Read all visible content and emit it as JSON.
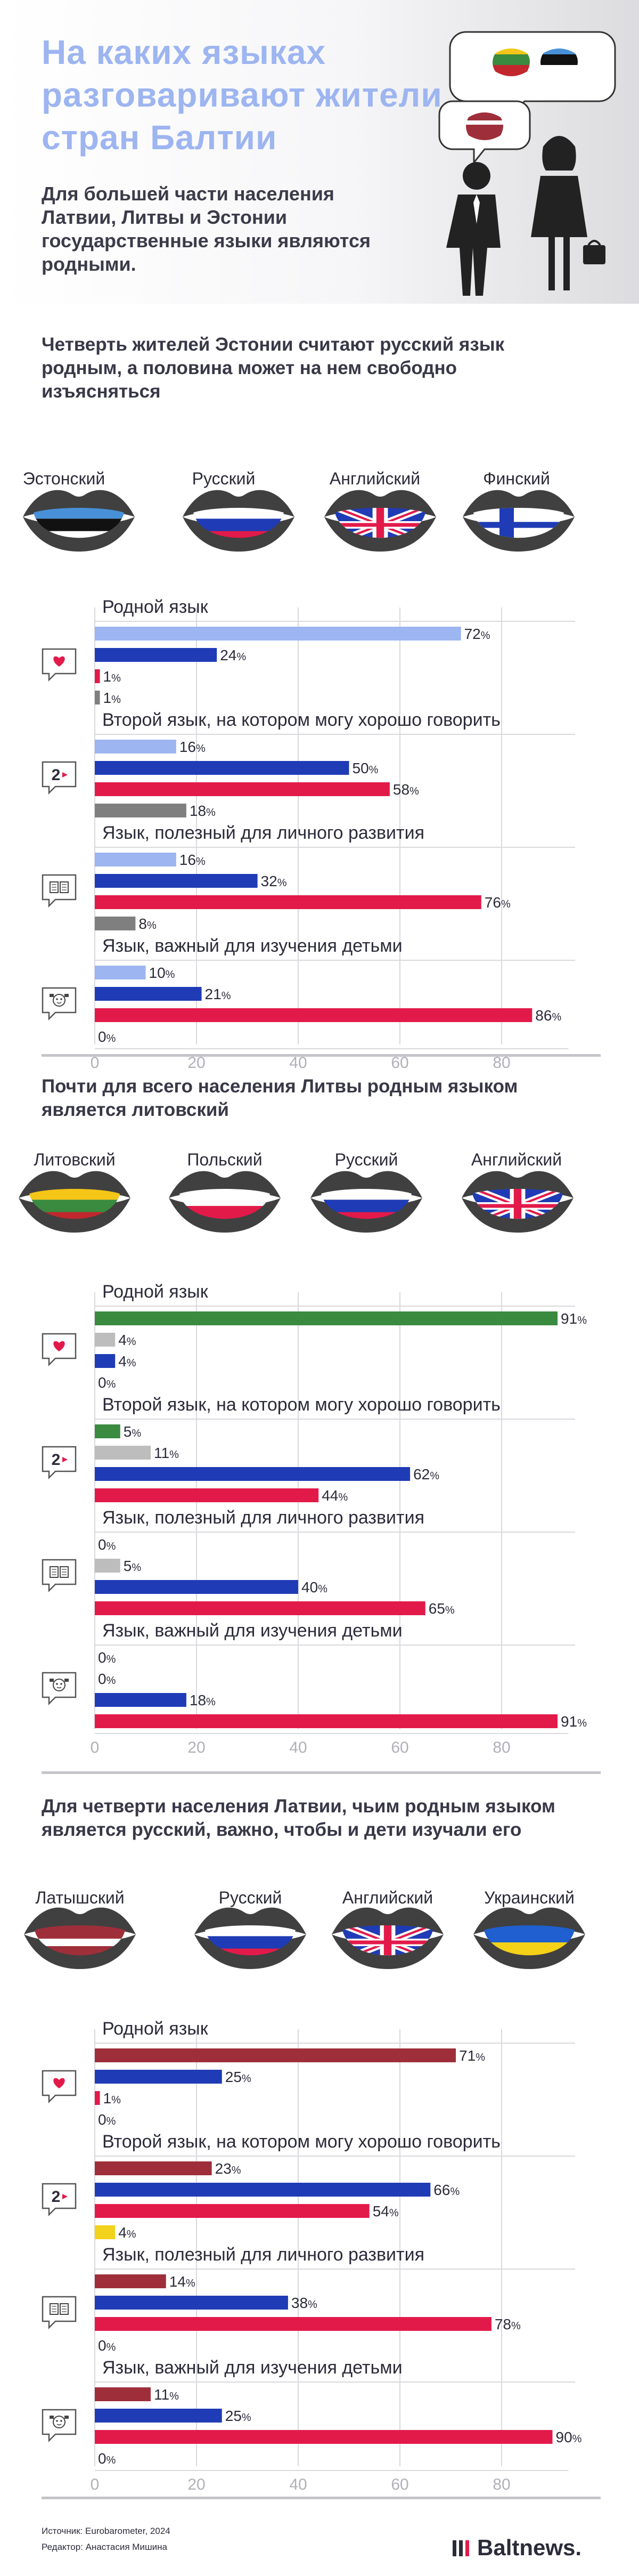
{
  "header": {
    "title": "На каких языках разговаривают жители стран Балтии",
    "lead": "Для большей части населения Латвии, Литвы и Эстонии государственные языки являются родными."
  },
  "colors": {
    "primary_blue": "#1f3bb5",
    "red": "#e21a4a",
    "light_blue": "#9db5f0",
    "green": "#3a8a3f",
    "gray": "#7f7f7f",
    "light_gray": "#bdbdbd",
    "maroon": "#9e2f3a",
    "yellow": "#f2d21b"
  },
  "sections": [
    {
      "title": "Четверть жителей Эстонии считают русский язык родным, а половина может на нем свободно изъясняться",
      "languages": [
        {
          "name": "Эстонский",
          "flag": "estonia-flag",
          "color": "#9db5f0"
        },
        {
          "name": "Русский",
          "flag": "russia-flag",
          "color": "#1f3bb5"
        },
        {
          "name": "Английский",
          "flag": "uk-flag",
          "color": "#e21a4a"
        },
        {
          "name": "Финский",
          "flag": "finland-flag",
          "color": "#7f7f7f"
        }
      ]
    },
    {
      "title": "Почти для всего населения Литвы родным языком является литовский",
      "languages": [
        {
          "name": "Литовский",
          "flag": "lithuania-flag",
          "color": "#3a8a3f"
        },
        {
          "name": "Польский",
          "flag": "poland-flag",
          "color": "#bdbdbd"
        },
        {
          "name": "Русский",
          "flag": "russia-flag",
          "color": "#1f3bb5"
        },
        {
          "name": "Английский",
          "flag": "uk-flag",
          "color": "#e21a4a"
        }
      ]
    },
    {
      "title": "Для четверти населения Латвии, чьим родным языком является русский, важно, чтобы и дети изучали его",
      "languages": [
        {
          "name": "Латышский",
          "flag": "latvia-flag",
          "color": "#9e2f3a"
        },
        {
          "name": "Русский",
          "flag": "russia-flag",
          "color": "#1f3bb5"
        },
        {
          "name": "Английский",
          "flag": "uk-flag",
          "color": "#e21a4a"
        },
        {
          "name": "Украинский",
          "flag": "ukraine-flag",
          "color": "#f2d21b"
        }
      ]
    }
  ],
  "chart_data": [
    {
      "type": "bar",
      "orientation": "horizontal",
      "title": "Четверть жителей Эстонии считают русский язык родным, а половина может на нем свободно изъясняться",
      "categories": [
        "Родной язык",
        "Второй язык, на котором могу хорошо говорить",
        "Язык, полезный для личного развития",
        "Язык, важный для изучения детьми"
      ],
      "category_icons": [
        "heart-icon",
        "number-two-icon",
        "book-icon",
        "child-icon"
      ],
      "series": [
        {
          "name": "Эстонский",
          "color": "#9db5f0",
          "values": [
            72,
            16,
            16,
            10
          ]
        },
        {
          "name": "Русский",
          "color": "#1f3bb5",
          "values": [
            24,
            50,
            32,
            21
          ]
        },
        {
          "name": "Английский",
          "color": "#e21a4a",
          "values": [
            1,
            58,
            76,
            86
          ]
        },
        {
          "name": "Финский",
          "color": "#7f7f7f",
          "values": [
            1,
            18,
            8,
            0
          ]
        }
      ],
      "unit": "%",
      "xlim": [
        0,
        90
      ],
      "xticks": [
        0,
        20,
        40,
        60,
        80
      ],
      "grid": true
    },
    {
      "type": "bar",
      "orientation": "horizontal",
      "title": "Почти для всего населения Литвы родным языком является литовский",
      "categories": [
        "Родной язык",
        "Второй язык, на котором могу хорошо говорить",
        "Язык, полезный для личного развития",
        "Язык, важный для изучения детьми"
      ],
      "category_icons": [
        "heart-icon",
        "number-two-icon",
        "book-icon",
        "child-icon"
      ],
      "series": [
        {
          "name": "Литовский",
          "color": "#3a8a3f",
          "values": [
            91,
            5,
            0,
            0
          ]
        },
        {
          "name": "Польский",
          "color": "#bdbdbd",
          "values": [
            4,
            11,
            5,
            0
          ]
        },
        {
          "name": "Русский",
          "color": "#1f3bb5",
          "values": [
            4,
            62,
            40,
            18
          ]
        },
        {
          "name": "Английский",
          "color": "#e21a4a",
          "values": [
            0,
            44,
            65,
            91
          ]
        }
      ],
      "unit": "%",
      "xlim": [
        0,
        90
      ],
      "xticks": [
        0,
        20,
        40,
        60,
        80
      ],
      "grid": true
    },
    {
      "type": "bar",
      "orientation": "horizontal",
      "title": "Для четверти населения Латвии, чьим родным языком является русский, важно, чтобы и дети изучали его",
      "categories": [
        "Родной язык",
        "Второй язык, на котором могу хорошо говорить",
        "Язык, полезный для личного развития",
        "Язык, важный для изучения детьми"
      ],
      "category_icons": [
        "heart-icon",
        "number-two-icon",
        "book-icon",
        "child-icon"
      ],
      "series": [
        {
          "name": "Латышский",
          "color": "#9e2f3a",
          "values": [
            71,
            23,
            14,
            11
          ]
        },
        {
          "name": "Русский",
          "color": "#1f3bb5",
          "values": [
            25,
            66,
            38,
            25
          ]
        },
        {
          "name": "Английский",
          "color": "#e21a4a",
          "values": [
            1,
            54,
            78,
            90
          ]
        },
        {
          "name": "Украинский",
          "color": "#f2d21b",
          "values": [
            0,
            4,
            0,
            0
          ]
        }
      ],
      "unit": "%",
      "xlim": [
        0,
        90
      ],
      "xticks": [
        0,
        20,
        40,
        60,
        80
      ],
      "grid": true
    }
  ],
  "footer": {
    "source": "Источник: Eurobarometer, 2024",
    "editor": "Редактор: Анастасия Мишина",
    "brand": "Baltnews."
  }
}
